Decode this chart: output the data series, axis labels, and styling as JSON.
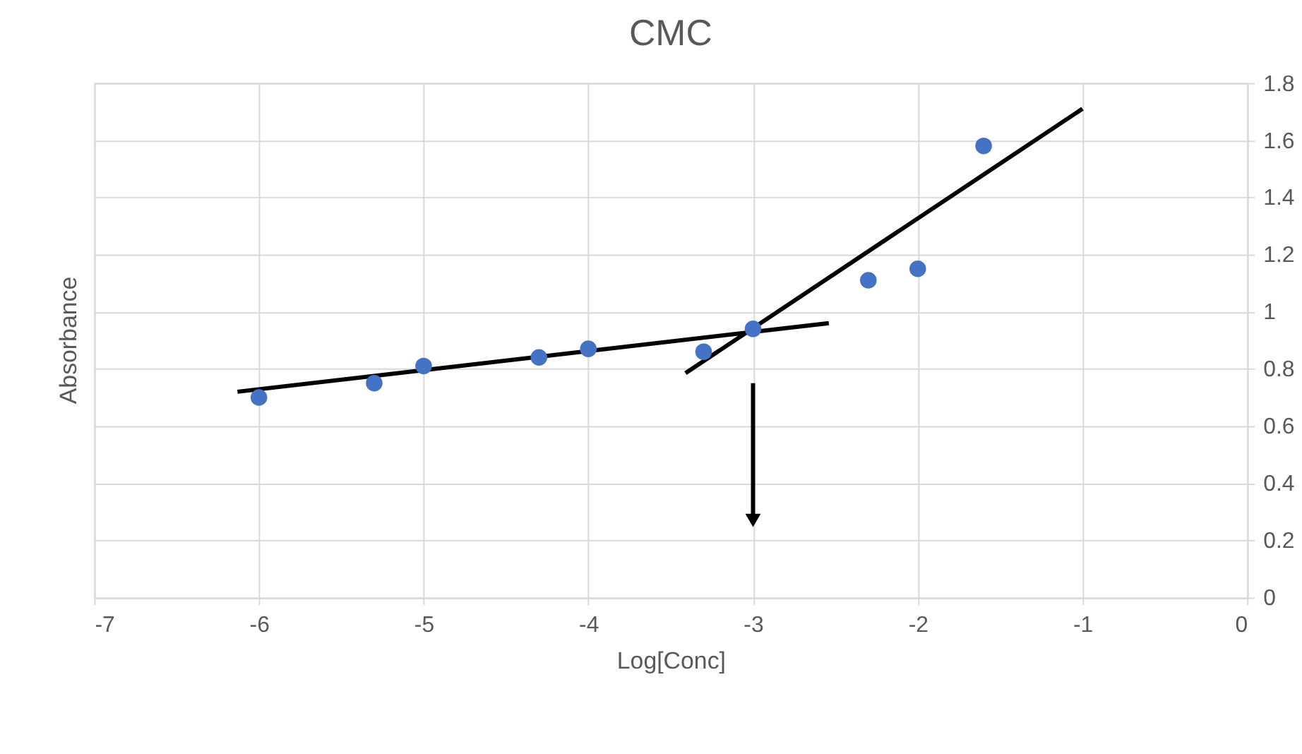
{
  "chart_data": {
    "type": "scatter",
    "title": "CMC",
    "xlabel": "Log[Conc]",
    "ylabel": "Absorbance",
    "series": [
      {
        "color": "#4472c4",
        "marker": "circle",
        "x": [
          -6,
          -5.3,
          -5,
          -4.3,
          -4,
          -3.3,
          -3,
          -2.3,
          -2,
          -1.6
        ],
        "values": [
          0.7,
          0.75,
          0.81,
          0.84,
          0.87,
          0.86,
          0.94,
          1.11,
          1.15,
          1.58
        ]
      },
      {
        "type": "line",
        "color": "#000000",
        "line_style": "solid",
        "x": [
          -6.13,
          -2.54
        ],
        "values": [
          0.72,
          0.96
        ]
      },
      {
        "type": "line",
        "color": "#000000",
        "line_style": "solid",
        "x": [
          -3.41,
          -1.0
        ],
        "values": [
          0.785,
          1.71
        ]
      }
    ],
    "xlim": [
      -7,
      0
    ],
    "xticks": [
      -7,
      -6,
      -5,
      -4,
      -3,
      -2,
      -1,
      0
    ],
    "ylim": [
      0,
      1.8
    ],
    "yticks": [
      0,
      0.2,
      0.4,
      0.6,
      0.8,
      1,
      1.2,
      1.4,
      1.6,
      1.8
    ],
    "grid": true
  }
}
